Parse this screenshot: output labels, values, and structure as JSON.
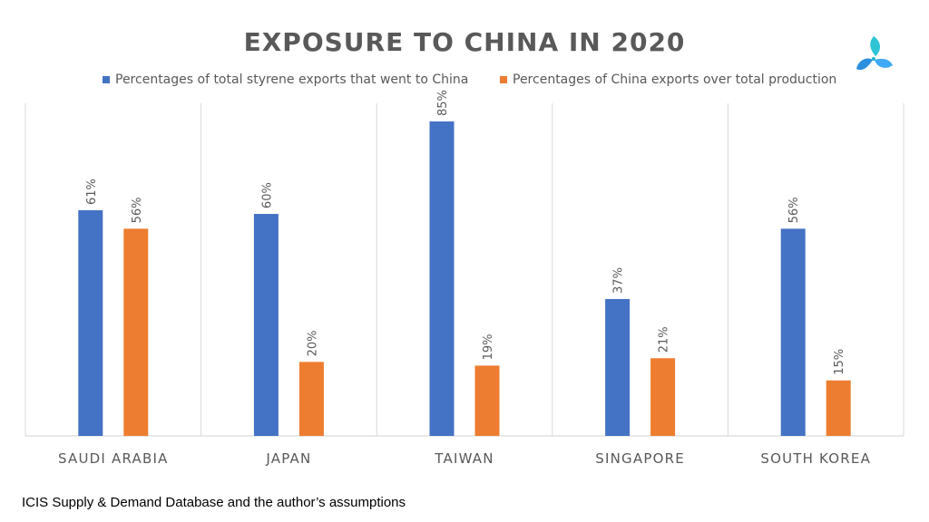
{
  "colors": {
    "series1": "#4472C4",
    "series2": "#ED7D31",
    "text": "#595959",
    "grid": "#D9D9D9"
  },
  "logo": {
    "icon": "triangle-swirl-logo"
  },
  "source_note": "ICIS Supply & Demand Database and the author’s assumptions",
  "chart_data": {
    "type": "bar",
    "title": "EXPOSURE TO CHINA IN 2020",
    "categories": [
      "SAUDI ARABIA",
      "JAPAN",
      "TAIWAN",
      "SINGAPORE",
      "SOUTH KOREA"
    ],
    "series": [
      {
        "name": "Percentages of total styrene exports that went to China",
        "values": [
          61,
          60,
          85,
          37,
          56
        ],
        "labels": [
          "61%",
          "60%",
          "85%",
          "37%",
          "56%"
        ]
      },
      {
        "name": "Percentages of China exports over total production",
        "values": [
          56,
          20,
          19,
          21,
          15
        ],
        "labels": [
          "56%",
          "20%",
          "19%",
          "21%",
          "15%"
        ]
      }
    ],
    "ylim": [
      0,
      90
    ],
    "legend": "top",
    "grid": "vertical separators between categories"
  }
}
